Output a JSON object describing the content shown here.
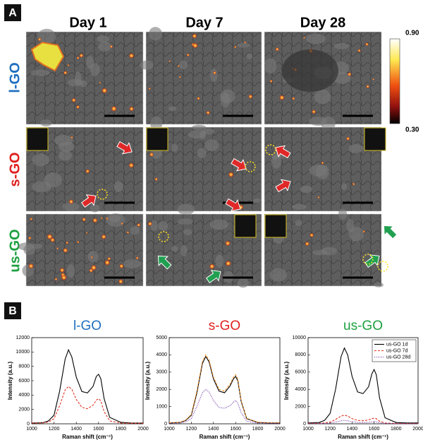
{
  "panel_a": {
    "label": "A",
    "columns": [
      "Day 1",
      "Day 7",
      "Day 28"
    ],
    "rows": [
      "l-GO",
      "s-GO",
      "us-GO"
    ],
    "colorbar": {
      "max": "0.90",
      "min": "0.30"
    }
  },
  "panel_b": {
    "label": "B"
  },
  "chart_data": [
    {
      "type": "line",
      "title": "l-GO",
      "title_color": "#1f6fbf",
      "x_label": "Raman shift (cm⁻¹)",
      "y_label": "Intensity (a.u.)",
      "x": [
        1000,
        1100,
        1150,
        1200,
        1250,
        1300,
        1330,
        1360,
        1400,
        1450,
        1500,
        1550,
        1580,
        1600,
        1620,
        1650,
        1700,
        1800,
        1900,
        2000
      ],
      "xlim": [
        1000,
        2000
      ],
      "xticks": [
        1000,
        1200,
        1400,
        1600,
        1800,
        2000
      ],
      "ylim": [
        0,
        12000
      ],
      "yticks": [
        0,
        2000,
        4000,
        6000,
        8000,
        10000,
        12000
      ],
      "series": [
        {
          "color": "#000000",
          "style": "solid",
          "values": [
            100,
            150,
            400,
            1200,
            4500,
            9000,
            10300,
            9300,
            6500,
            4500,
            4300,
            5200,
            6600,
            6900,
            6300,
            3500,
            900,
            200,
            100,
            100
          ]
        },
        {
          "color": "#e03020",
          "style": "dashed",
          "values": [
            100,
            120,
            250,
            700,
            2500,
            4700,
            5200,
            4800,
            3400,
            2300,
            2100,
            2600,
            3300,
            3500,
            3200,
            1700,
            400,
            100,
            80,
            80
          ]
        }
      ]
    },
    {
      "type": "line",
      "title": "s-GO",
      "title_color": "#e02020",
      "x_label": "Raman shift (cm⁻¹)",
      "y_label": "Intensity (a.u.)",
      "x": [
        1000,
        1100,
        1150,
        1200,
        1250,
        1300,
        1330,
        1360,
        1400,
        1450,
        1500,
        1550,
        1580,
        1600,
        1620,
        1650,
        1700,
        1800,
        1900,
        2000
      ],
      "xlim": [
        1000,
        2000
      ],
      "xticks": [
        1000,
        1200,
        1400,
        1600,
        1800,
        2000
      ],
      "ylim": [
        0,
        5000
      ],
      "yticks": [
        0,
        1000,
        2000,
        3000,
        4000,
        5000
      ],
      "series": [
        {
          "color": "#000000",
          "style": "solid",
          "values": [
            50,
            80,
            200,
            500,
            1800,
            3500,
            3900,
            3600,
            2600,
            1900,
            1800,
            2200,
            2600,
            2750,
            2500,
            1300,
            300,
            80,
            50,
            50
          ]
        },
        {
          "color": "#f08a20",
          "style": "dashed",
          "values": [
            60,
            90,
            220,
            550,
            1900,
            3600,
            4000,
            3700,
            2700,
            2000,
            1900,
            2300,
            2700,
            2850,
            2600,
            1350,
            320,
            90,
            60,
            60
          ]
        },
        {
          "color": "#6a2aa0",
          "style": "dotted",
          "values": [
            30,
            50,
            120,
            300,
            1000,
            1800,
            2000,
            1850,
            1350,
            950,
            900,
            1050,
            1250,
            1350,
            1200,
            650,
            150,
            40,
            30,
            30
          ]
        }
      ]
    },
    {
      "type": "line",
      "title": "us-GO",
      "title_color": "#1fa040",
      "x_label": "Raman shift (cm⁻¹)",
      "y_label": "Intensity (a.u.)",
      "x": [
        1000,
        1100,
        1150,
        1200,
        1250,
        1300,
        1330,
        1360,
        1400,
        1450,
        1500,
        1550,
        1580,
        1600,
        1620,
        1650,
        1700,
        1800,
        1900,
        2000
      ],
      "xlim": [
        1000,
        2000
      ],
      "xticks": [
        1000,
        1200,
        1400,
        1600,
        1800,
        2000
      ],
      "ylim": [
        0,
        10000
      ],
      "yticks": [
        0,
        2000,
        4000,
        6000,
        8000,
        10000
      ],
      "legend": "upper right",
      "series": [
        {
          "name": "us-GO 1d",
          "color": "#000000",
          "style": "solid",
          "values": [
            100,
            150,
            400,
            1200,
            4000,
            7800,
            8800,
            8000,
            5500,
            3700,
            3500,
            4300,
            5800,
            6300,
            5700,
            3000,
            700,
            150,
            100,
            100
          ]
        },
        {
          "name": "us-GO 7d",
          "color": "#e03020",
          "style": "dashed",
          "values": [
            50,
            60,
            100,
            200,
            500,
            900,
            1000,
            900,
            600,
            400,
            350,
            450,
            600,
            650,
            600,
            300,
            100,
            40,
            30,
            30
          ]
        },
        {
          "name": "us-GO 28d",
          "color": "#6a2aa0",
          "style": "dotted",
          "values": [
            20,
            30,
            50,
            100,
            200,
            350,
            400,
            350,
            250,
            150,
            140,
            170,
            220,
            250,
            220,
            120,
            40,
            20,
            10,
            10
          ]
        }
      ]
    }
  ]
}
